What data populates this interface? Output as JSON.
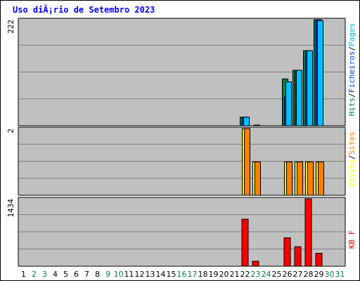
{
  "title": "Uso diÃ¡rio de Setembro 2023",
  "colors": {
    "plot_bg": "#c0c0c0",
    "grid": "#808080",
    "hits": "#008040",
    "files": "#0040ff",
    "pages": "#00c0ff",
    "visits": "#ffff00",
    "sites": "#ff8000",
    "kbytes": "#ff0000",
    "weekday": "#000000",
    "weekend": "#008040",
    "title": "#0000ff"
  },
  "chart_data": [
    {
      "type": "bar",
      "panel": "hits",
      "ymax_label": "222",
      "ylim": [
        0,
        222
      ],
      "right_labels": [
        {
          "text": "Hits",
          "color": "#008040"
        },
        {
          "text": "/",
          "color": "#000000"
        },
        {
          "text": "Ficheiros",
          "color": "#0040ff"
        },
        {
          "text": "/",
          "color": "#000000"
        },
        {
          "text": "Pages",
          "color": "#00c0ff"
        }
      ],
      "series": [
        {
          "name": "Hits",
          "color": "#008040",
          "points": [
            {
              "day": 22,
              "value": 18
            },
            {
              "day": 26,
              "value": 98
            },
            {
              "day": 27,
              "value": 116
            },
            {
              "day": 28,
              "value": 157
            },
            {
              "day": 29,
              "value": 222
            }
          ]
        },
        {
          "name": "Ficheiros",
          "color": "#0040ff",
          "points": [
            {
              "day": 22,
              "value": 18
            },
            {
              "day": 26,
              "value": 60
            },
            {
              "day": 27,
              "value": 116
            },
            {
              "day": 28,
              "value": 157
            },
            {
              "day": 29,
              "value": 222
            }
          ]
        },
        {
          "name": "Pages",
          "color": "#00c0ff",
          "points": [
            {
              "day": 22,
              "value": 18
            },
            {
              "day": 23,
              "value": 1
            },
            {
              "day": 26,
              "value": 92
            },
            {
              "day": 27,
              "value": 116
            },
            {
              "day": 28,
              "value": 157
            },
            {
              "day": 29,
              "value": 220
            }
          ]
        }
      ]
    },
    {
      "type": "bar",
      "panel": "visits",
      "ymax_label": "2",
      "ylim": [
        0,
        2
      ],
      "right_labels": [
        {
          "text": "Visits",
          "color": "#ffff00"
        },
        {
          "text": "/",
          "color": "#000000"
        },
        {
          "text": "Sites",
          "color": "#ff8000"
        }
      ],
      "series": [
        {
          "name": "Visits",
          "color": "#ffff00",
          "points": [
            {
              "day": 22,
              "value": 2
            },
            {
              "day": 23,
              "value": 1
            },
            {
              "day": 26,
              "value": 1
            },
            {
              "day": 27,
              "value": 1
            },
            {
              "day": 28,
              "value": 1
            },
            {
              "day": 29,
              "value": 1
            }
          ]
        },
        {
          "name": "Sites",
          "color": "#ff8000",
          "points": [
            {
              "day": 22,
              "value": 2
            },
            {
              "day": 23,
              "value": 1
            },
            {
              "day": 26,
              "value": 1
            },
            {
              "day": 27,
              "value": 1
            },
            {
              "day": 28,
              "value": 1
            },
            {
              "day": 29,
              "value": 1
            }
          ]
        }
      ]
    },
    {
      "type": "bar",
      "panel": "kbytes",
      "ymax_label": "1434",
      "ylim": [
        0,
        1434
      ],
      "right_labels": [
        {
          "text": "KB F",
          "color": "#ff0000"
        }
      ],
      "series": [
        {
          "name": "KB F",
          "color": "#ff0000",
          "points": [
            {
              "day": 22,
              "value": 1000
            },
            {
              "day": 23,
              "value": 107
            },
            {
              "day": 26,
              "value": 605
            },
            {
              "day": 27,
              "value": 415
            },
            {
              "day": 28,
              "value": 1434
            },
            {
              "day": 29,
              "value": 276
            }
          ]
        }
      ]
    }
  ],
  "days": [
    {
      "label": "1",
      "weekend": false
    },
    {
      "label": "2",
      "weekend": true
    },
    {
      "label": "3",
      "weekend": true
    },
    {
      "label": "4",
      "weekend": false
    },
    {
      "label": "5",
      "weekend": false
    },
    {
      "label": "6",
      "weekend": false
    },
    {
      "label": "7",
      "weekend": false
    },
    {
      "label": "8",
      "weekend": false
    },
    {
      "label": "9",
      "weekend": true
    },
    {
      "label": "10",
      "weekend": true
    },
    {
      "label": "11",
      "weekend": false
    },
    {
      "label": "12",
      "weekend": false
    },
    {
      "label": "13",
      "weekend": false
    },
    {
      "label": "14",
      "weekend": false
    },
    {
      "label": "15",
      "weekend": false
    },
    {
      "label": "16",
      "weekend": true
    },
    {
      "label": "17",
      "weekend": true
    },
    {
      "label": "18",
      "weekend": false
    },
    {
      "label": "19",
      "weekend": false
    },
    {
      "label": "20",
      "weekend": false
    },
    {
      "label": "21",
      "weekend": false
    },
    {
      "label": "22",
      "weekend": false
    },
    {
      "label": "23",
      "weekend": true
    },
    {
      "label": "24",
      "weekend": true
    },
    {
      "label": "25",
      "weekend": false
    },
    {
      "label": "26",
      "weekend": false
    },
    {
      "label": "27",
      "weekend": false
    },
    {
      "label": "28",
      "weekend": false
    },
    {
      "label": "29",
      "weekend": false
    },
    {
      "label": "30",
      "weekend": true
    },
    {
      "label": "31",
      "weekend": true
    }
  ]
}
